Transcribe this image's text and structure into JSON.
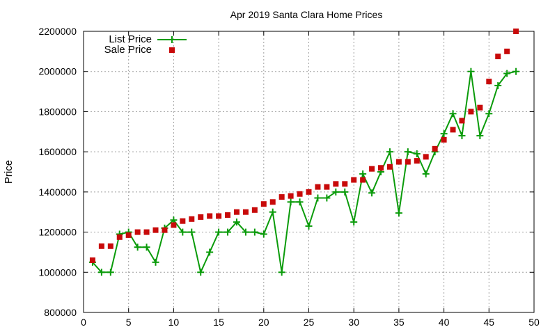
{
  "chart_data": {
    "type": "line",
    "title": "Apr 2019 Santa Clara Home Prices",
    "xlabel": "",
    "ylabel": "Price",
    "xlim": [
      0,
      50
    ],
    "ylim": [
      800000,
      2200000
    ],
    "x_ticks": [
      0,
      5,
      10,
      15,
      20,
      25,
      30,
      35,
      40,
      45,
      50
    ],
    "y_ticks": [
      800000,
      1000000,
      1200000,
      1400000,
      1600000,
      1800000,
      2000000,
      2200000
    ],
    "grid": true,
    "legend_position": "top-left",
    "series": [
      {
        "name": "List Price",
        "style": "line-with-plus-markers",
        "color": "#0a9b0a",
        "x": [
          1,
          2,
          3,
          4,
          5,
          6,
          7,
          8,
          9,
          10,
          11,
          12,
          13,
          14,
          15,
          16,
          17,
          18,
          19,
          20,
          21,
          22,
          23,
          24,
          25,
          26,
          27,
          28,
          29,
          30,
          31,
          32,
          33,
          34,
          35,
          36,
          37,
          38,
          39,
          40,
          41,
          42,
          43,
          44,
          45,
          46,
          47,
          48
        ],
        "values": [
          1050000,
          1000000,
          1000000,
          1190000,
          1200000,
          1125000,
          1125000,
          1050000,
          1220000,
          1260000,
          1200000,
          1200000,
          1000000,
          1100000,
          1200000,
          1200000,
          1250000,
          1200000,
          1200000,
          1190000,
          1300000,
          1000000,
          1350000,
          1350000,
          1230000,
          1370000,
          1370000,
          1400000,
          1400000,
          1250000,
          1490000,
          1395000,
          1500000,
          1600000,
          1295000,
          1600000,
          1590000,
          1490000,
          1600000,
          1690000,
          1790000,
          1680000,
          2000000,
          1680000,
          1790000,
          1930000,
          1990000,
          2000000
        ]
      },
      {
        "name": "Sale Price",
        "style": "square-markers",
        "color": "#c80a0a",
        "x": [
          1,
          2,
          3,
          4,
          5,
          6,
          7,
          8,
          9,
          10,
          11,
          12,
          13,
          14,
          15,
          16,
          17,
          18,
          19,
          20,
          21,
          22,
          23,
          24,
          25,
          26,
          27,
          28,
          29,
          30,
          31,
          32,
          33,
          34,
          35,
          36,
          37,
          38,
          39,
          40,
          41,
          42,
          43,
          44,
          45,
          46,
          47,
          48
        ],
        "values": [
          1060000,
          1130000,
          1130000,
          1175000,
          1185000,
          1200000,
          1200000,
          1210000,
          1210000,
          1235000,
          1255000,
          1265000,
          1275000,
          1280000,
          1280000,
          1285000,
          1300000,
          1300000,
          1310000,
          1340000,
          1350000,
          1375000,
          1380000,
          1390000,
          1400000,
          1425000,
          1425000,
          1440000,
          1440000,
          1460000,
          1460000,
          1515000,
          1520000,
          1525000,
          1550000,
          1550000,
          1555000,
          1575000,
          1615000,
          1660000,
          1710000,
          1755000,
          1800000,
          1820000,
          1950000,
          2075000,
          2100000,
          2200000
        ]
      }
    ]
  }
}
